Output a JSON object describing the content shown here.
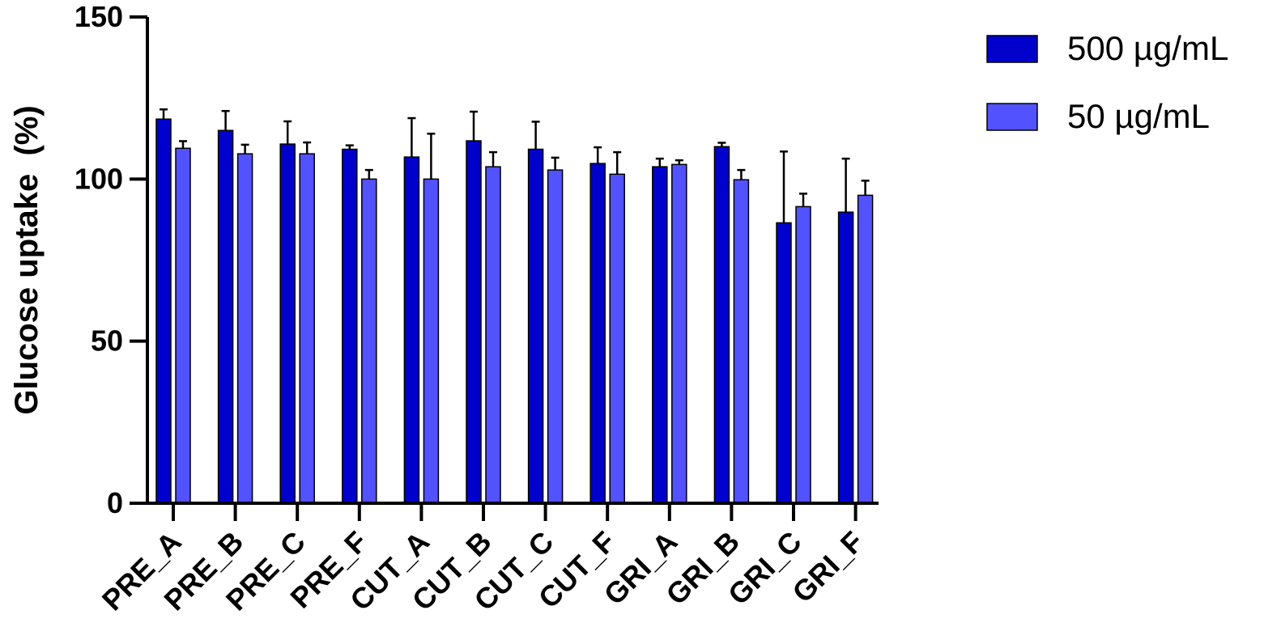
{
  "chart_data": {
    "type": "bar",
    "title": "",
    "xlabel": "",
    "ylabel": "Glucose uptake  (%)",
    "ylim": [
      0,
      150
    ],
    "yticks": [
      0,
      50,
      100,
      150
    ],
    "categories": [
      "PRE_A",
      "PRE_B",
      "PRE_C",
      "PRE_F",
      "CUT_A",
      "CUT_B",
      "CUT_C",
      "CUT_F",
      "GRI_A",
      "GRI_B",
      "GRI_C",
      "GRI_F"
    ],
    "series": [
      {
        "name": "500 µg/mL",
        "color": "#0000CC",
        "values": [
          118.5,
          115,
          110.8,
          109.2,
          106.8,
          111.8,
          109.2,
          104.8,
          103.8,
          110,
          86.5,
          89.8
        ],
        "errors": [
          3,
          6,
          7,
          1.2,
          12,
          9,
          8.5,
          5,
          2.5,
          1.2,
          22,
          16.5
        ]
      },
      {
        "name": "50 µg/mL",
        "color": "#5252FF",
        "values": [
          109.5,
          107.8,
          107.8,
          100,
          100,
          103.8,
          102.8,
          101.5,
          104.5,
          99.8,
          91.5,
          95
        ],
        "errors": [
          2.2,
          2.8,
          3.5,
          2.8,
          14,
          4.5,
          3.8,
          6.8,
          1.3,
          3,
          4,
          4.5
        ]
      }
    ],
    "legend_position": "top-right",
    "grid": false
  }
}
